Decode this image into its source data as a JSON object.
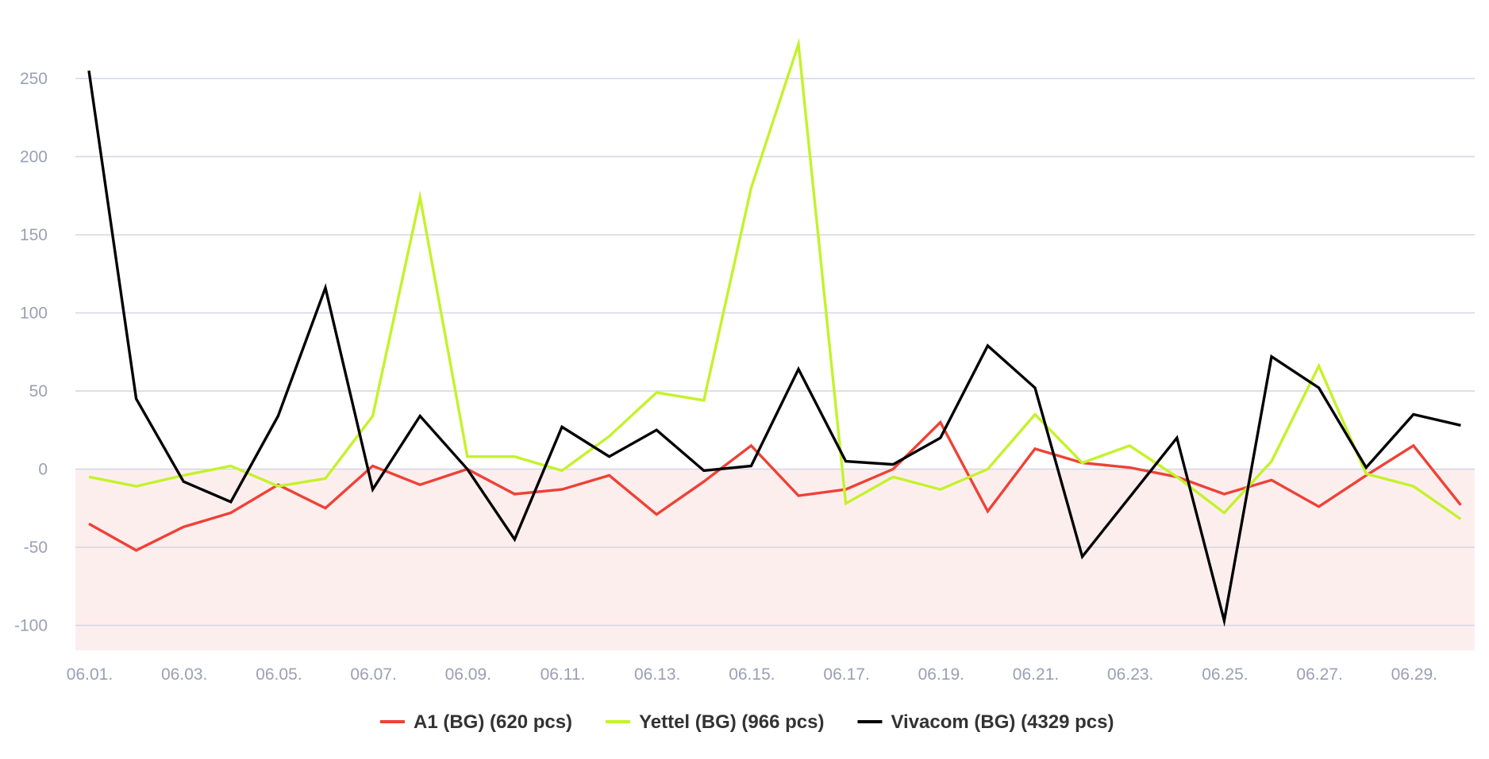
{
  "chart_data": {
    "type": "line",
    "x": [
      "06.01.",
      "06.02.",
      "06.03.",
      "06.04.",
      "06.05.",
      "06.06.",
      "06.07.",
      "06.08.",
      "06.09.",
      "06.10.",
      "06.11.",
      "06.12.",
      "06.13.",
      "06.14.",
      "06.15.",
      "06.16.",
      "06.17.",
      "06.18.",
      "06.19.",
      "06.20.",
      "06.21.",
      "06.22.",
      "06.23.",
      "06.24.",
      "06.25.",
      "06.26.",
      "06.27.",
      "06.28.",
      "06.29.",
      "06.30."
    ],
    "x_tick_labels": [
      "06.01.",
      "06.03.",
      "06.05.",
      "06.07.",
      "06.09.",
      "06.11.",
      "06.13.",
      "06.15.",
      "06.17.",
      "06.19.",
      "06.21.",
      "06.23.",
      "06.25.",
      "06.27.",
      "06.29."
    ],
    "y_ticks": [
      250,
      200,
      150,
      100,
      50,
      0,
      -50,
      -100
    ],
    "ylim": [
      -116,
      285
    ],
    "negative_region_color": "#fdeeee",
    "grid": true,
    "legend_position": "bottom-center",
    "series": [
      {
        "name": "A1 (BG) (620 pcs)",
        "color": "#ef4136",
        "values": [
          -35,
          -52,
          -37,
          -28,
          -10,
          -25,
          2,
          -10,
          0,
          -16,
          -13,
          -4,
          -29,
          -8,
          15,
          -17,
          -13,
          0,
          30,
          -27,
          13,
          4,
          1,
          -5,
          -16,
          -7,
          -24,
          -4,
          15,
          -23
        ]
      },
      {
        "name": "Yettel (BG) (966 pcs)",
        "color": "#c4f22a",
        "values": [
          -5,
          -11,
          -4,
          2,
          -11,
          -6,
          34,
          174,
          8,
          8,
          -1,
          21,
          49,
          44,
          180,
          272,
          -22,
          -5,
          -13,
          0,
          35,
          4,
          15,
          -5,
          -28,
          5,
          66,
          -3,
          -11,
          -32
        ]
      },
      {
        "name": "Vivacom (BG) (4329 pcs)",
        "color": "#000000",
        "values": [
          255,
          45,
          -8,
          -21,
          34,
          116,
          -13,
          34,
          0,
          -45,
          27,
          8,
          25,
          -1,
          2,
          64,
          5,
          3,
          20,
          79,
          52,
          -56,
          -18,
          20,
          -97,
          72,
          52,
          1,
          35,
          28
        ]
      }
    ]
  }
}
